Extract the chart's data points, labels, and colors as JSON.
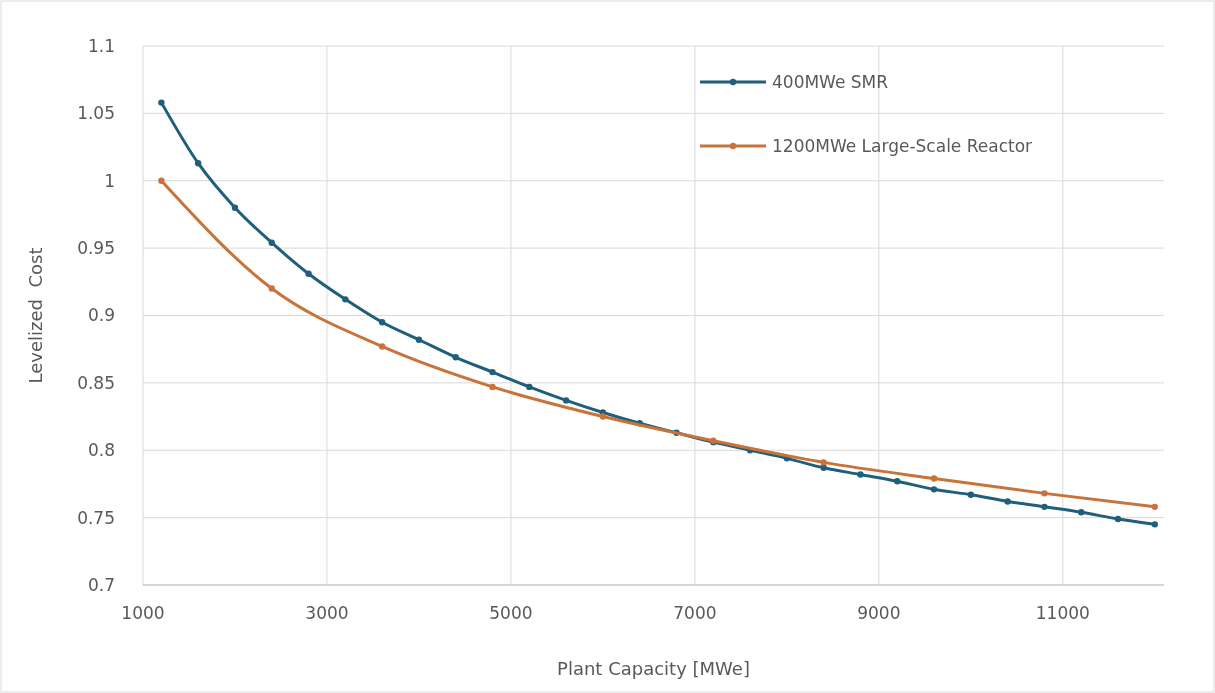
{
  "chart_data": {
    "type": "line",
    "xlabel": "Plant Capacity [MWe]",
    "ylabel": "Levelized  Cost",
    "xlim": [
      1000,
      12100
    ],
    "xticks": [
      1000,
      3000,
      5000,
      7000,
      9000,
      11000
    ],
    "ylim": [
      0.7,
      1.1
    ],
    "yticks": [
      0.7,
      0.75,
      0.8,
      0.85,
      0.9,
      0.95,
      1,
      1.05,
      1.1
    ],
    "grid": true,
    "legend": "top right",
    "marker": "circle",
    "line_style": "solid",
    "series": [
      {
        "name": "400MWe SMR",
        "color": "#1f5f7c",
        "x": [
          1200,
          1600,
          2000,
          2400,
          2800,
          3200,
          3600,
          4000,
          4400,
          4800,
          5200,
          5600,
          6000,
          6400,
          6800,
          7200,
          7600,
          8000,
          8400,
          8800,
          9200,
          9600,
          10000,
          10400,
          10800,
          11200,
          11600,
          12000
        ],
        "values": [
          1.058,
          1.013,
          0.98,
          0.954,
          0.931,
          0.912,
          0.895,
          0.882,
          0.869,
          0.858,
          0.847,
          0.837,
          0.828,
          0.82,
          0.813,
          0.806,
          0.8,
          0.794,
          0.787,
          0.782,
          0.777,
          0.771,
          0.767,
          0.762,
          0.758,
          0.754,
          0.749,
          0.745
        ]
      },
      {
        "name": "1200MWe Large-Scale Reactor",
        "color": "#c8733a",
        "x": [
          1200,
          2400,
          3600,
          4800,
          6000,
          7200,
          8400,
          9600,
          10800,
          12000
        ],
        "values": [
          1.0,
          0.92,
          0.877,
          0.847,
          0.825,
          0.807,
          0.791,
          0.779,
          0.768,
          0.758
        ]
      }
    ]
  }
}
